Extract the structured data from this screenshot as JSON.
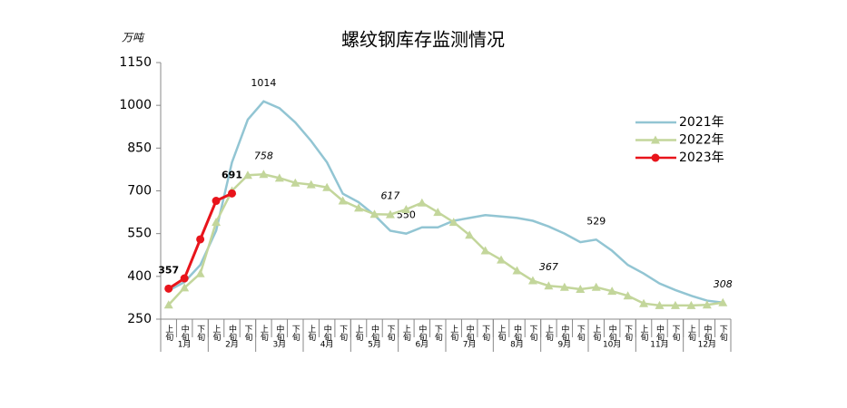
{
  "chart_data": {
    "type": "line",
    "title": "螺纹钢库存监测情况",
    "y_unit": "万吨",
    "categories": [
      "上旬",
      "中旬",
      "下旬",
      "上旬",
      "中旬",
      "下旬",
      "上旬",
      "中旬",
      "下旬",
      "上旬",
      "中旬",
      "下旬",
      "上旬",
      "中旬",
      "下旬",
      "上旬",
      "中旬",
      "下旬",
      "上旬",
      "中旬",
      "下旬",
      "上旬",
      "中旬",
      "下旬",
      "上旬",
      "中旬",
      "下旬",
      "上旬",
      "中旬",
      "下旬",
      "上旬",
      "中旬",
      "下旬",
      "上旬",
      "中旬",
      "下旬"
    ],
    "months": [
      "1月",
      "2月",
      "3月",
      "4月",
      "5月",
      "6月",
      "7月",
      "8月",
      "9月",
      "10月",
      "11月",
      "12月"
    ],
    "ylim": [
      250,
      1150
    ],
    "yticks": [
      250,
      400,
      550,
      700,
      850,
      1000,
      1150
    ],
    "series": [
      {
        "name": "2021年",
        "color": "#92c5d3",
        "marker": "none",
        "values": [
          350,
          380,
          440,
          560,
          800,
          950,
          1014,
          990,
          940,
          875,
          800,
          690,
          660,
          615,
          560,
          550,
          572,
          572,
          595,
          605,
          615,
          610,
          605,
          595,
          575,
          550,
          520,
          529,
          490,
          440,
          410,
          375,
          352,
          332,
          315,
          308
        ],
        "labeled": [
          6,
          15,
          27
        ]
      },
      {
        "name": "2022年",
        "color": "#c3d69b",
        "marker": "triangle",
        "values": [
          300,
          360,
          410,
          590,
          700,
          755,
          758,
          745,
          728,
          722,
          712,
          665,
          640,
          618,
          617,
          635,
          658,
          625,
          590,
          545,
          490,
          458,
          420,
          385,
          367,
          362,
          355,
          362,
          348,
          332,
          305,
          298,
          298,
          298,
          300,
          308
        ],
        "labeled": [
          6,
          14,
          24,
          35
        ]
      },
      {
        "name": "2023年",
        "color": "#e8141b",
        "marker": "circle",
        "values": [
          357,
          393,
          530,
          665,
          691,
          null,
          null,
          null,
          null,
          null,
          null,
          null,
          null,
          null,
          null,
          null,
          null,
          null,
          null,
          null,
          null,
          null,
          null,
          null,
          null,
          null,
          null,
          null,
          null,
          null,
          null,
          null,
          null,
          null,
          null,
          null
        ],
        "labeled": [
          0,
          4
        ]
      }
    ]
  }
}
